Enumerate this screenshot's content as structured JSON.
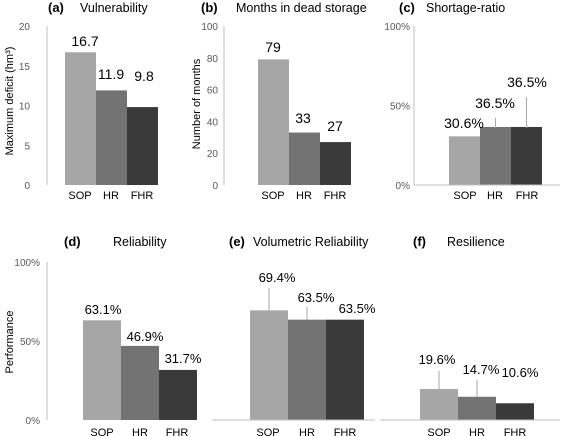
{
  "chart_data": [
    {
      "type": "bar",
      "panel": "(a)",
      "title": "Vulnerability",
      "ylabel": "Maximum deficit (hm³)",
      "categories": [
        "SOP",
        "HR",
        "FHR"
      ],
      "values": [
        16.7,
        11.9,
        9.8
      ],
      "value_labels": [
        "16.7",
        "11.9",
        "9.8"
      ],
      "ylim": [
        0,
        20
      ],
      "yticks": [
        "0",
        "5",
        "10",
        "15",
        "20"
      ],
      "colors": [
        "#a6a6a6",
        "#737373",
        "#3a3a3a"
      ]
    },
    {
      "type": "bar",
      "panel": "(b)",
      "title": "Months in dead storage",
      "ylabel": "Number of months",
      "categories": [
        "SOP",
        "HR",
        "FHR"
      ],
      "values": [
        79,
        33,
        27
      ],
      "value_labels": [
        "79",
        "33",
        "27"
      ],
      "ylim": [
        0,
        100
      ],
      "yticks": [
        "0",
        "20",
        "40",
        "60",
        "80",
        "100"
      ],
      "colors": [
        "#a6a6a6",
        "#737373",
        "#3a3a3a"
      ]
    },
    {
      "type": "bar",
      "panel": "(c)",
      "title": "Shortage-ratio",
      "ylabel": "",
      "categories": [
        "SOP",
        "HR",
        "FHR"
      ],
      "values": [
        30.6,
        36.5,
        36.5
      ],
      "value_labels": [
        "30.6%",
        "36.5%",
        "36.5%"
      ],
      "ylim": [
        0,
        100
      ],
      "yticks": [
        "0%",
        "50%",
        "100%"
      ],
      "colors": [
        "#a6a6a6",
        "#737373",
        "#3a3a3a"
      ]
    },
    {
      "type": "bar",
      "panel": "(d)",
      "title": "Reliability",
      "ylabel": "Performance",
      "categories": [
        "SOP",
        "HR",
        "FHR"
      ],
      "values": [
        63.1,
        46.9,
        31.7
      ],
      "value_labels": [
        "63.1%",
        "46.9%",
        "31.7%"
      ],
      "ylim": [
        0,
        100
      ],
      "yticks": [
        "0%",
        "50%",
        "100%"
      ],
      "colors": [
        "#a6a6a6",
        "#737373",
        "#3a3a3a"
      ]
    },
    {
      "type": "bar",
      "panel": "(e)",
      "title": "Volumetric Reliability",
      "ylabel": "",
      "categories": [
        "SOP",
        "HR",
        "FHR"
      ],
      "values": [
        69.4,
        63.5,
        63.5
      ],
      "value_labels": [
        "69.4%",
        "63.5%",
        "63.5%"
      ],
      "ylim": [
        0,
        100
      ],
      "yticks": [],
      "colors": [
        "#a6a6a6",
        "#737373",
        "#3a3a3a"
      ]
    },
    {
      "type": "bar",
      "panel": "(f)",
      "title": "Resilience",
      "ylabel": "",
      "categories": [
        "SOP",
        "HR",
        "FHR"
      ],
      "values": [
        19.6,
        14.7,
        10.6
      ],
      "value_labels": [
        "19.6%",
        "14.7%",
        "10.6%"
      ],
      "ylim": [
        0,
        100
      ],
      "yticks": [],
      "colors": [
        "#a6a6a6",
        "#737373",
        "#3a3a3a"
      ]
    }
  ]
}
